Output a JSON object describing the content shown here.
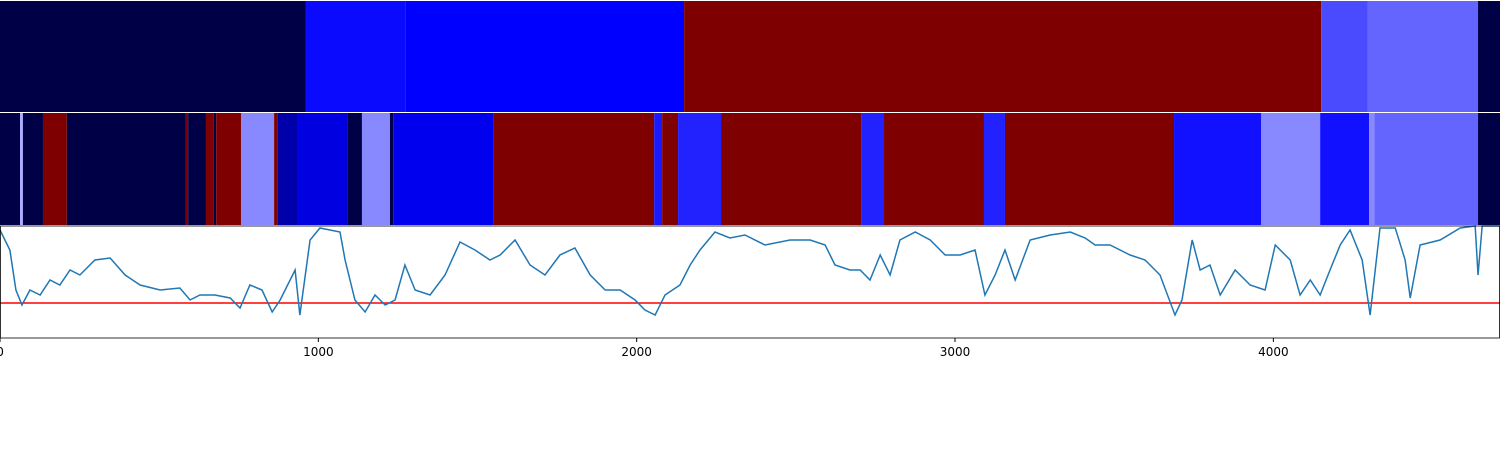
{
  "chart_data": [
    {
      "type": "strip",
      "xlim": [
        0,
        4712
      ],
      "segments": [
        {
          "start": 0,
          "end": 961,
          "color": "#000046"
        },
        {
          "start": 961,
          "end": 1275,
          "color": "#0a0aff"
        },
        {
          "start": 1275,
          "end": 2149,
          "color": "#0000ff"
        },
        {
          "start": 2149,
          "end": 4150,
          "color": "#7f0000"
        },
        {
          "start": 4150,
          "end": 4297,
          "color": "#4a4aff"
        },
        {
          "start": 4297,
          "end": 4643,
          "color": "#6464ff"
        },
        {
          "start": 4643,
          "end": 4712,
          "color": "#000046"
        }
      ]
    },
    {
      "type": "strip",
      "xlim": [
        0,
        4712
      ],
      "segments": [
        {
          "start": 0,
          "end": 63,
          "color": "#000046"
        },
        {
          "start": 63,
          "end": 72,
          "color": "#aaaaff"
        },
        {
          "start": 72,
          "end": 135,
          "color": "#000046"
        },
        {
          "start": 135,
          "end": 210,
          "color": "#7f0000"
        },
        {
          "start": 210,
          "end": 584,
          "color": "#000046"
        },
        {
          "start": 584,
          "end": 591,
          "color": "#7f0000"
        },
        {
          "start": 591,
          "end": 647,
          "color": "#000046"
        },
        {
          "start": 647,
          "end": 672,
          "color": "#7f0000"
        },
        {
          "start": 672,
          "end": 679,
          "color": "#000046"
        },
        {
          "start": 679,
          "end": 757,
          "color": "#7f0000"
        },
        {
          "start": 757,
          "end": 861,
          "color": "#8888ff"
        },
        {
          "start": 861,
          "end": 873,
          "color": "#7f0000"
        },
        {
          "start": 873,
          "end": 936,
          "color": "#0000aa"
        },
        {
          "start": 936,
          "end": 1093,
          "color": "#0000e0"
        },
        {
          "start": 1093,
          "end": 1137,
          "color": "#000046"
        },
        {
          "start": 1137,
          "end": 1225,
          "color": "#8888ff"
        },
        {
          "start": 1225,
          "end": 1235,
          "color": "#000046"
        },
        {
          "start": 1235,
          "end": 1549,
          "color": "#0000ee"
        },
        {
          "start": 1549,
          "end": 2055,
          "color": "#7f0000"
        },
        {
          "start": 2055,
          "end": 2080,
          "color": "#1a1aff"
        },
        {
          "start": 2080,
          "end": 2130,
          "color": "#7f0000"
        },
        {
          "start": 2130,
          "end": 2265,
          "color": "#2222ff"
        },
        {
          "start": 2265,
          "end": 2705,
          "color": "#7f0000"
        },
        {
          "start": 2705,
          "end": 2777,
          "color": "#2222ff"
        },
        {
          "start": 2777,
          "end": 3091,
          "color": "#7f0000"
        },
        {
          "start": 3091,
          "end": 3157,
          "color": "#2222ff"
        },
        {
          "start": 3157,
          "end": 3688,
          "color": "#7f0000"
        },
        {
          "start": 3688,
          "end": 3962,
          "color": "#1111ff"
        },
        {
          "start": 3962,
          "end": 4147,
          "color": "#8888ff"
        },
        {
          "start": 4147,
          "end": 4301,
          "color": "#1111ff"
        },
        {
          "start": 4301,
          "end": 4317,
          "color": "#8888ff"
        },
        {
          "start": 4317,
          "end": 4643,
          "color": "#6464ff"
        },
        {
          "start": 4643,
          "end": 4712,
          "color": "#000046"
        }
      ]
    },
    {
      "type": "line",
      "xlim": [
        0,
        4712
      ],
      "ylim": [
        0,
        112
      ],
      "color": "#1f77b4",
      "xticks": [
        0,
        1000,
        2000,
        3000,
        4000
      ],
      "hline": {
        "value": 35,
        "color": "#ff0000"
      },
      "x": [
        0,
        31,
        50,
        69,
        94,
        126,
        157,
        188,
        220,
        251,
        298,
        346,
        393,
        440,
        503,
        565,
        597,
        628,
        675,
        723,
        754,
        785,
        823,
        855,
        880,
        927,
        942,
        974,
        1005,
        1068,
        1084,
        1115,
        1147,
        1178,
        1210,
        1241,
        1272,
        1304,
        1351,
        1398,
        1445,
        1492,
        1539,
        1571,
        1618,
        1665,
        1712,
        1759,
        1806,
        1854,
        1901,
        1948,
        1995,
        2026,
        2058,
        2089,
        2136,
        2168,
        2199,
        2246,
        2293,
        2340,
        2403,
        2482,
        2545,
        2592,
        2623,
        2670,
        2702,
        2733,
        2765,
        2796,
        2827,
        2875,
        2922,
        2969,
        3016,
        3063,
        3094,
        3126,
        3157,
        3189,
        3236,
        3299,
        3362,
        3409,
        3440,
        3487,
        3550,
        3597,
        3644,
        3691,
        3713,
        3745,
        3770,
        3801,
        3833,
        3880,
        3927,
        3974,
        4006,
        4053,
        4084,
        4116,
        4147,
        4178,
        4210,
        4241,
        4279,
        4304,
        4335,
        4383,
        4414,
        4430,
        4461,
        4524,
        4587,
        4634,
        4643,
        4656,
        4712
      ],
      "values": [
        108,
        88,
        48,
        33,
        48,
        43,
        58,
        53,
        68,
        63,
        78,
        80,
        63,
        53,
        48,
        50,
        38,
        43,
        43,
        40,
        30,
        53,
        48,
        26,
        38,
        68,
        23,
        98,
        110,
        106,
        78,
        38,
        26,
        43,
        33,
        38,
        73,
        48,
        43,
        63,
        96,
        88,
        78,
        83,
        98,
        73,
        63,
        83,
        90,
        63,
        48,
        48,
        38,
        28,
        23,
        43,
        53,
        73,
        88,
        106,
        100,
        103,
        93,
        98,
        98,
        93,
        73,
        68,
        68,
        58,
        83,
        63,
        98,
        106,
        98,
        83,
        83,
        88,
        43,
        63,
        88,
        58,
        98,
        103,
        106,
        100,
        93,
        93,
        83,
        78,
        63,
        23,
        38,
        98,
        68,
        73,
        43,
        68,
        53,
        48,
        93,
        78,
        43,
        58,
        43,
        68,
        93,
        108,
        78,
        23,
        110,
        110,
        78,
        40,
        93,
        98,
        110,
        112,
        63,
        112,
        112
      ]
    }
  ]
}
